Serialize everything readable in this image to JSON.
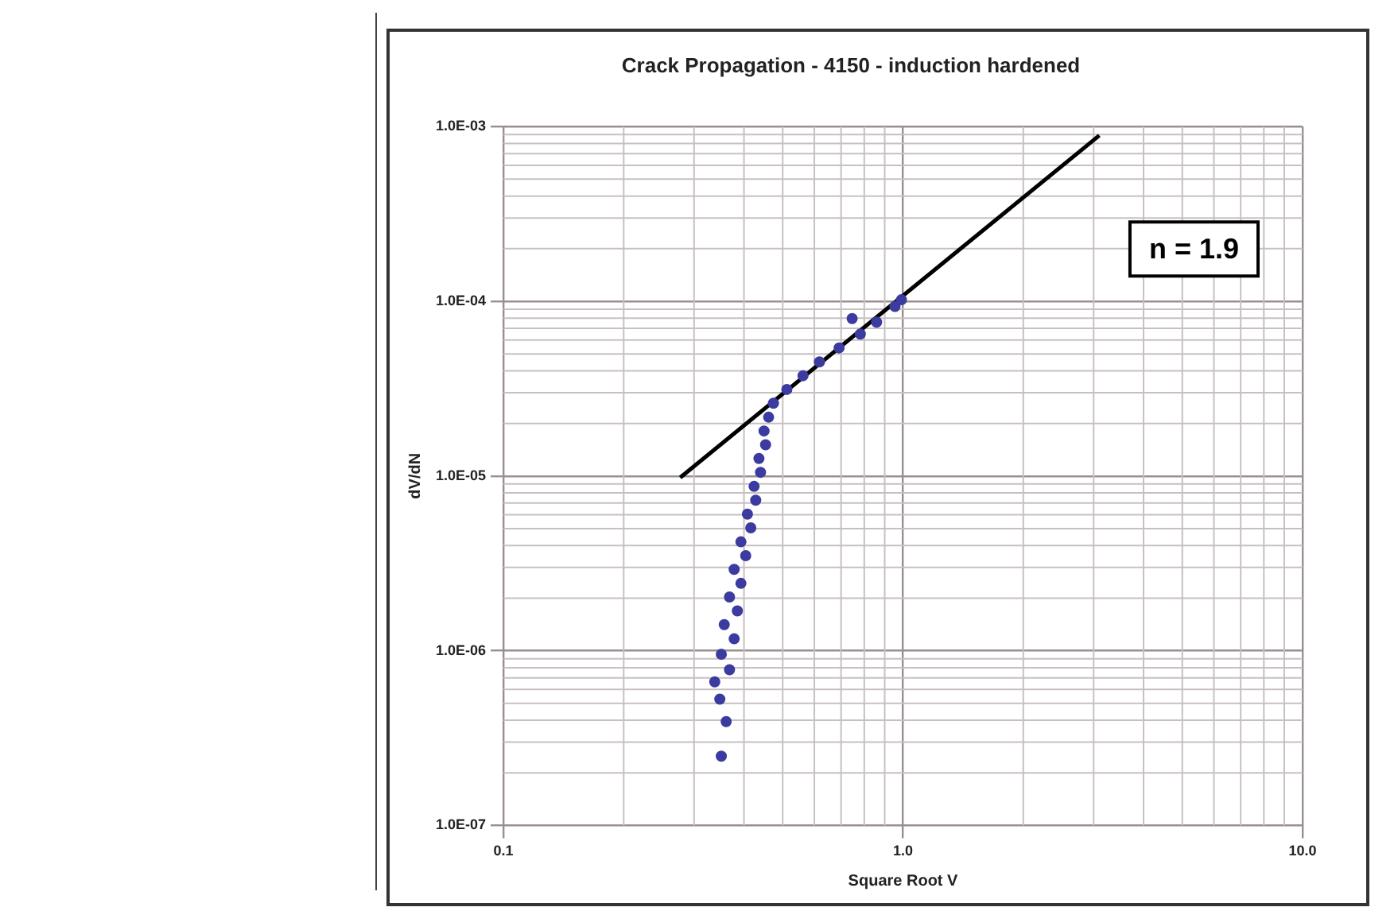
{
  "chart_data": {
    "type": "scatter",
    "title": "Crack Propagation - 4150 - induction hardened",
    "xlabel": "Square Root V",
    "ylabel": "dV/dN",
    "log": "xy",
    "grid": true,
    "legend": false,
    "marker": "circle",
    "xlim": [
      0.1,
      10
    ],
    "xticks": [
      {
        "value": 0.1,
        "label": "0.1"
      },
      {
        "value": 1,
        "label": "1.0"
      },
      {
        "value": 10,
        "label": "10.0"
      }
    ],
    "ylim": [
      1e-07,
      0.001
    ],
    "yticks": [
      {
        "value": 1e-07,
        "label": "1.0E-07"
      },
      {
        "value": 1e-06,
        "label": "1.0E-06"
      },
      {
        "value": 1e-05,
        "label": "1.0E-05"
      },
      {
        "value": 0.0001,
        "label": "1.0E-04"
      },
      {
        "value": 0.001,
        "label": "1.0E-03"
      }
    ],
    "annotations": [
      "n = 1.9"
    ],
    "series": [
      {
        "type": "scatter",
        "color": "#3b3ba0",
        "x": [
          0.351,
          0.361,
          0.348,
          0.338,
          0.368,
          0.351,
          0.378,
          0.357,
          0.385,
          0.368,
          0.393,
          0.378,
          0.404,
          0.393,
          0.416,
          0.408,
          0.428,
          0.424,
          0.44,
          0.436,
          0.453,
          0.449,
          0.461,
          0.474,
          0.512,
          0.562,
          0.618,
          0.692,
          0.782,
          0.859,
          0.746,
          0.955,
          0.991
        ],
        "values": [
          2.49e-07,
          3.93e-07,
          5.28e-07,
          6.64e-07,
          7.78e-07,
          9.55e-07,
          1.17e-06,
          1.41e-06,
          1.69e-06,
          2.03e-06,
          2.43e-06,
          2.92e-06,
          3.5e-06,
          4.2e-06,
          5.05e-06,
          6.05e-06,
          7.27e-06,
          8.72e-06,
          1.05e-05,
          1.26e-05,
          1.51e-05,
          1.81e-05,
          2.17e-05,
          2.61e-05,
          3.13e-05,
          3.75e-05,
          4.5e-05,
          5.41e-05,
          6.49e-05,
          7.6e-05,
          7.96e-05,
          9.34e-05,
          0.000102
        ]
      },
      {
        "type": "line",
        "color": "#000000",
        "marker": "none",
        "x": [
          0.277,
          3.1
        ],
        "values": [
          9.8e-06,
          0.00089
        ]
      }
    ]
  }
}
